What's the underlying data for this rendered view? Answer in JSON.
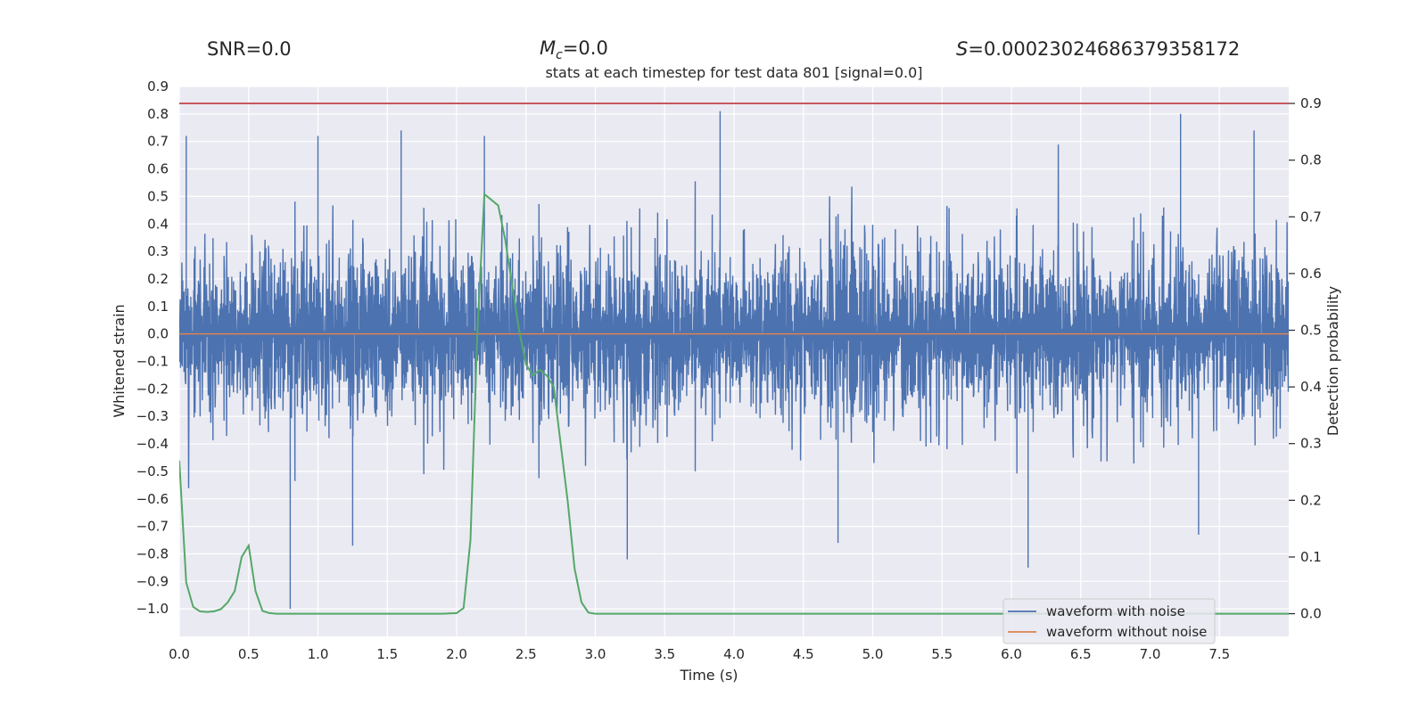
{
  "header": {
    "snr": "SNR=0.0",
    "mc_symbol": "M",
    "mc_sub": "c",
    "mc_value": "=0.0",
    "s_symbol": "S",
    "s_value": "=0.00023024686379358172"
  },
  "chart_data": {
    "type": "line",
    "title": "stats at each timestep for test data 801 [signal=0.0]",
    "xlabel": "Time (s)",
    "ylabel": "Whitened strain",
    "y2label": "Detection probability",
    "xlim": [
      0.0,
      8.0
    ],
    "ylim": [
      -1.1,
      0.9
    ],
    "y2lim": [
      -0.04,
      0.93
    ],
    "x_ticks": [
      "0.0",
      "0.5",
      "1.0",
      "1.5",
      "2.0",
      "2.5",
      "3.0",
      "3.5",
      "4.0",
      "4.5",
      "5.0",
      "5.5",
      "6.0",
      "6.5",
      "7.0",
      "7.5"
    ],
    "y_ticks": [
      "0.9",
      "0.8",
      "0.7",
      "0.6",
      "0.5",
      "0.4",
      "0.3",
      "0.2",
      "0.1",
      "0.0",
      "-0.1",
      "-0.2",
      "-0.3",
      "-0.4",
      "-0.5",
      "-0.6",
      "-0.7",
      "-0.8",
      "-0.9",
      "-1.0"
    ],
    "y2_ticks": [
      "0.9",
      "0.8",
      "0.7",
      "0.6",
      "0.5",
      "0.4",
      "0.3",
      "0.2",
      "0.1",
      "0.0"
    ],
    "grid": true,
    "legend_position": "bottom-right",
    "series": [
      {
        "name": "waveform with noise",
        "axis": "left",
        "color": "#4c72b0",
        "style": "dense noise, mostly within ±0.4, occasional spikes",
        "duration_s": 8.0,
        "typical_amplitude": 0.4,
        "max_value": 0.81,
        "min_value": -1.0,
        "spikes": [
          [
            0.05,
            0.72
          ],
          [
            1.0,
            0.72
          ],
          [
            1.6,
            0.74
          ],
          [
            2.2,
            0.72
          ],
          [
            3.9,
            0.81
          ],
          [
            7.22,
            0.8
          ],
          [
            7.75,
            0.74
          ],
          [
            0.8,
            -1.0
          ],
          [
            1.25,
            -0.77
          ],
          [
            3.23,
            -0.82
          ],
          [
            4.75,
            -0.76
          ],
          [
            6.12,
            -0.85
          ],
          [
            7.35,
            -0.73
          ]
        ]
      },
      {
        "name": "waveform without noise",
        "axis": "left",
        "color": "#dd8452",
        "x": [
          0.0,
          8.0
        ],
        "y": [
          0.0,
          0.0
        ]
      },
      {
        "name": "detection probability",
        "axis": "right",
        "color": "#55a868",
        "x": [
          0.0,
          0.05,
          0.1,
          0.15,
          0.2,
          0.25,
          0.3,
          0.35,
          0.4,
          0.45,
          0.5,
          0.55,
          0.6,
          0.65,
          0.7,
          0.75,
          0.8,
          0.9,
          1.0,
          1.5,
          1.9,
          2.0,
          2.05,
          2.1,
          2.15,
          2.2,
          2.25,
          2.3,
          2.35,
          2.4,
          2.45,
          2.5,
          2.55,
          2.6,
          2.65,
          2.7,
          2.75,
          2.8,
          2.85,
          2.9,
          2.95,
          3.0,
          3.5,
          8.0
        ],
        "y": [
          0.27,
          0.055,
          0.012,
          0.004,
          0.003,
          0.004,
          0.008,
          0.02,
          0.04,
          0.1,
          0.12,
          0.04,
          0.005,
          0.001,
          0.0,
          0.0,
          0.0,
          0.0,
          0.0,
          0.0,
          0.0,
          0.001,
          0.01,
          0.13,
          0.5,
          0.74,
          0.73,
          0.72,
          0.66,
          0.58,
          0.5,
          0.44,
          0.42,
          0.43,
          0.42,
          0.4,
          0.3,
          0.2,
          0.08,
          0.02,
          0.002,
          0.0,
          0.0,
          0.0
        ]
      },
      {
        "name": "threshold",
        "axis": "right",
        "color": "#c44e52",
        "x": [
          0.0,
          8.0
        ],
        "y": [
          0.9,
          0.9
        ]
      }
    ]
  }
}
